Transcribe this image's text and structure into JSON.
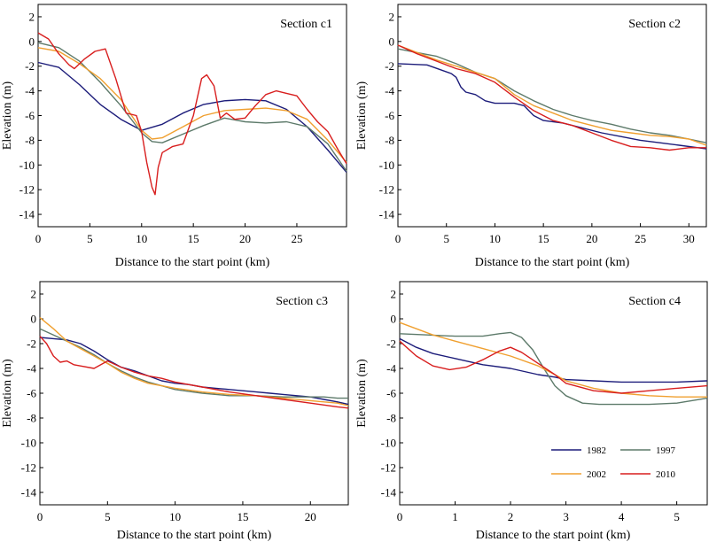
{
  "colors": {
    "1982": "#1c1c7a",
    "1997": "#5d7a6a",
    "2002": "#f0a030",
    "2010": "#d81e1e"
  },
  "legend": {
    "entries": [
      "1982",
      "1997",
      "2002",
      "2010"
    ],
    "placement": "bottom-right of Section c4"
  },
  "chart_data": [
    {
      "type": "line",
      "title": "Section c1",
      "xlabel": "Distance to the start point (km)",
      "ylabel": "Elevation (m)",
      "xlim": [
        0,
        29.8
      ],
      "ylim": [
        -15,
        3
      ],
      "xticks": [
        0,
        5,
        10,
        15,
        20,
        25
      ],
      "yticks": [
        2,
        0,
        -2,
        -4,
        -6,
        -8,
        -10,
        -12,
        -14
      ],
      "series": [
        {
          "name": "1982",
          "x": [
            0,
            2,
            4,
            6,
            8,
            10,
            12,
            14,
            16,
            18,
            20,
            22,
            24,
            26,
            28,
            29.8
          ],
          "y": [
            -1.7,
            -2.1,
            -3.5,
            -5.1,
            -6.3,
            -7.2,
            -6.7,
            -5.8,
            -5.1,
            -4.8,
            -4.7,
            -4.8,
            -5.5,
            -6.9,
            -8.8,
            -10.6
          ]
        },
        {
          "name": "1997",
          "x": [
            0,
            2,
            4,
            6,
            8,
            10,
            11,
            12,
            14,
            16,
            18,
            20,
            22,
            24,
            26,
            28,
            29.8
          ],
          "y": [
            -0.1,
            -0.5,
            -1.6,
            -3.3,
            -5.2,
            -7.4,
            -8.1,
            -8.2,
            -7.5,
            -6.8,
            -6.2,
            -6.5,
            -6.6,
            -6.5,
            -6.9,
            -8.3,
            -10.5
          ]
        },
        {
          "name": "2002",
          "x": [
            0,
            2,
            4,
            6,
            8,
            10,
            11,
            12,
            14,
            16,
            18,
            20,
            22,
            24,
            26,
            28,
            29.8
          ],
          "y": [
            -0.5,
            -0.8,
            -1.8,
            -3.0,
            -4.7,
            -7.2,
            -7.9,
            -7.8,
            -6.9,
            -6.0,
            -5.6,
            -5.5,
            -5.4,
            -5.6,
            -6.3,
            -8.0,
            -9.8
          ]
        },
        {
          "name": "2010",
          "x": [
            0,
            1,
            2,
            3,
            3.5,
            4.5,
            5.5,
            6.5,
            7.5,
            8.5,
            9.5,
            10,
            10.5,
            11,
            11.3,
            11.6,
            12,
            13,
            14,
            15,
            15.8,
            16.3,
            17,
            17.6,
            18.2,
            19,
            20,
            21,
            22,
            23,
            24,
            25,
            26,
            27,
            28,
            29,
            29.8
          ],
          "y": [
            0.7,
            0.2,
            -1.0,
            -1.9,
            -2.2,
            -1.4,
            -0.8,
            -0.6,
            -3.0,
            -5.8,
            -6.0,
            -7.3,
            -9.8,
            -11.8,
            -12.4,
            -10.2,
            -9.0,
            -8.5,
            -8.3,
            -6.0,
            -3.0,
            -2.7,
            -3.6,
            -6.2,
            -5.8,
            -6.3,
            -6.2,
            -5.2,
            -4.3,
            -4.0,
            -4.2,
            -4.4,
            -5.5,
            -6.5,
            -7.3,
            -8.8,
            -9.9
          ]
        }
      ]
    },
    {
      "type": "line",
      "title": "Section c2",
      "xlabel": "Distance to the start point (km)",
      "ylabel": "Elevation (m)",
      "xlim": [
        0,
        31.8
      ],
      "ylim": [
        -15,
        3
      ],
      "xticks": [
        0,
        5,
        10,
        15,
        20,
        25,
        30
      ],
      "yticks": [
        2,
        0,
        -2,
        -4,
        -6,
        -8,
        -10,
        -12,
        -14
      ],
      "series": [
        {
          "name": "1982",
          "x": [
            0,
            3,
            5.5,
            6,
            6.5,
            7,
            8,
            9,
            10,
            11,
            12,
            13,
            14,
            15,
            17,
            19,
            21,
            23,
            25,
            27,
            29,
            31.8
          ],
          "y": [
            -1.8,
            -1.9,
            -2.6,
            -2.9,
            -3.7,
            -4.1,
            -4.3,
            -4.8,
            -5.0,
            -5.0,
            -5.0,
            -5.2,
            -6.0,
            -6.4,
            -6.6,
            -7.0,
            -7.4,
            -7.7,
            -8.0,
            -8.2,
            -8.4,
            -8.7
          ]
        },
        {
          "name": "1997",
          "x": [
            0,
            2,
            4,
            6,
            8,
            10,
            12,
            14,
            16,
            18,
            20,
            22,
            24,
            26,
            28,
            30,
            31.8
          ],
          "y": [
            -0.6,
            -0.9,
            -1.2,
            -1.8,
            -2.5,
            -3.0,
            -4.0,
            -4.8,
            -5.5,
            -6.0,
            -6.4,
            -6.7,
            -7.1,
            -7.4,
            -7.6,
            -7.9,
            -8.2
          ]
        },
        {
          "name": "2002",
          "x": [
            0,
            2,
            4,
            6,
            8,
            10,
            12,
            14,
            16,
            18,
            20,
            22,
            24,
            26,
            28,
            30,
            31.8
          ],
          "y": [
            -0.3,
            -0.9,
            -1.5,
            -2.0,
            -2.5,
            -3.0,
            -4.3,
            -5.2,
            -5.8,
            -6.4,
            -6.8,
            -7.2,
            -7.4,
            -7.6,
            -7.7,
            -7.9,
            -8.4
          ]
        },
        {
          "name": "2010",
          "x": [
            0,
            2,
            4,
            6,
            8,
            10,
            12,
            14,
            16,
            18,
            20,
            22,
            24,
            26,
            28,
            30,
            31.8
          ],
          "y": [
            -0.3,
            -1.0,
            -1.6,
            -2.2,
            -2.6,
            -3.3,
            -4.5,
            -5.6,
            -6.4,
            -6.8,
            -7.4,
            -8.0,
            -8.5,
            -8.6,
            -8.8,
            -8.6,
            -8.6
          ]
        }
      ]
    },
    {
      "type": "line",
      "title": "Section c3",
      "xlabel": "Distance to the start point (km)",
      "ylabel": "Elevation (m)",
      "xlim": [
        0,
        22.8
      ],
      "ylim": [
        -15,
        3
      ],
      "xticks": [
        0,
        5,
        10,
        15,
        20
      ],
      "yticks": [
        2,
        0,
        -2,
        -4,
        -6,
        -8,
        -10,
        -12,
        -14
      ],
      "series": [
        {
          "name": "1982",
          "x": [
            0,
            1,
            2,
            3,
            4,
            5,
            6,
            7,
            8,
            9,
            10,
            11,
            12,
            13,
            14,
            15,
            16,
            17,
            18,
            19,
            20,
            21,
            22,
            22.8
          ],
          "y": [
            -1.5,
            -1.6,
            -1.7,
            -2.0,
            -2.6,
            -3.3,
            -3.9,
            -4.2,
            -4.6,
            -5.0,
            -5.2,
            -5.3,
            -5.5,
            -5.6,
            -5.7,
            -5.8,
            -5.9,
            -6.0,
            -6.1,
            -6.2,
            -6.3,
            -6.5,
            -6.7,
            -6.9
          ]
        },
        {
          "name": "1997",
          "x": [
            0,
            1,
            2,
            3,
            4,
            5,
            6,
            7,
            8,
            9,
            10,
            12,
            14,
            16,
            18,
            20,
            21,
            22,
            22.8
          ],
          "y": [
            -0.8,
            -1.3,
            -1.8,
            -2.3,
            -2.9,
            -3.6,
            -4.2,
            -4.7,
            -5.1,
            -5.4,
            -5.7,
            -6.0,
            -6.2,
            -6.2,
            -6.3,
            -6.3,
            -6.3,
            -6.4,
            -6.4
          ]
        },
        {
          "name": "2002",
          "x": [
            0,
            1,
            2,
            3,
            4,
            5,
            6,
            7,
            8,
            9,
            10,
            12,
            14,
            16,
            18,
            20,
            22,
            22.8
          ],
          "y": [
            0.1,
            -0.8,
            -1.8,
            -2.4,
            -3.0,
            -3.6,
            -4.3,
            -4.8,
            -5.2,
            -5.4,
            -5.6,
            -5.9,
            -6.1,
            -6.2,
            -6.4,
            -6.6,
            -6.8,
            -7.0
          ]
        },
        {
          "name": "2010",
          "x": [
            0,
            0.5,
            1,
            1.5,
            2,
            2.5,
            3,
            4,
            5,
            6,
            7,
            8,
            9,
            10,
            12,
            14,
            16,
            18,
            20,
            22,
            22.8
          ],
          "y": [
            -1.4,
            -2.0,
            -3.0,
            -3.5,
            -3.4,
            -3.7,
            -3.8,
            -4.0,
            -3.4,
            -3.9,
            -4.3,
            -4.6,
            -4.8,
            -5.1,
            -5.5,
            -5.9,
            -6.2,
            -6.5,
            -6.8,
            -7.1,
            -7.2
          ]
        }
      ]
    },
    {
      "type": "line",
      "title": "Section c4",
      "xlabel": "Distance to the start point (km)",
      "ylabel": "Elevation (m)",
      "xlim": [
        0,
        5.55
      ],
      "ylim": [
        -15,
        3
      ],
      "xticks": [
        0,
        1,
        2,
        3,
        4,
        5
      ],
      "yticks": [
        2,
        0,
        -2,
        -4,
        -6,
        -8,
        -10,
        -12,
        -14
      ],
      "series": [
        {
          "name": "1982",
          "x": [
            0,
            0.3,
            0.6,
            1,
            1.5,
            2,
            2.5,
            2.8,
            3,
            3.5,
            4,
            4.5,
            5,
            5.55
          ],
          "y": [
            -1.6,
            -2.3,
            -2.8,
            -3.2,
            -3.7,
            -4.0,
            -4.5,
            -4.7,
            -4.9,
            -5.0,
            -5.1,
            -5.1,
            -5.1,
            -5.0
          ]
        },
        {
          "name": "1997",
          "x": [
            0,
            0.5,
            1,
            1.5,
            1.8,
            2.0,
            2.2,
            2.4,
            2.6,
            2.8,
            3.0,
            3.3,
            3.6,
            4.0,
            4.5,
            5,
            5.55
          ],
          "y": [
            -1.2,
            -1.3,
            -1.4,
            -1.4,
            -1.2,
            -1.1,
            -1.5,
            -2.5,
            -4.0,
            -5.4,
            -6.2,
            -6.8,
            -6.9,
            -6.9,
            -6.9,
            -6.8,
            -6.4
          ]
        },
        {
          "name": "2002",
          "x": [
            0,
            0.3,
            0.6,
            1,
            1.5,
            2,
            2.5,
            2.8,
            3,
            3.5,
            4,
            4.5,
            5,
            5.55
          ],
          "y": [
            -0.3,
            -0.8,
            -1.3,
            -1.8,
            -2.4,
            -3.0,
            -3.8,
            -4.5,
            -5.0,
            -5.6,
            -6.0,
            -6.2,
            -6.3,
            -6.3
          ]
        },
        {
          "name": "2010",
          "x": [
            0,
            0.3,
            0.6,
            0.9,
            1.2,
            1.5,
            1.8,
            2.0,
            2.2,
            2.5,
            2.8,
            3.0,
            3.5,
            4,
            4.5,
            5,
            5.55
          ],
          "y": [
            -1.8,
            -3.0,
            -3.8,
            -4.1,
            -3.9,
            -3.3,
            -2.6,
            -2.3,
            -2.7,
            -3.6,
            -4.5,
            -5.2,
            -5.8,
            -6.0,
            -5.8,
            -5.6,
            -5.4
          ]
        }
      ]
    }
  ]
}
